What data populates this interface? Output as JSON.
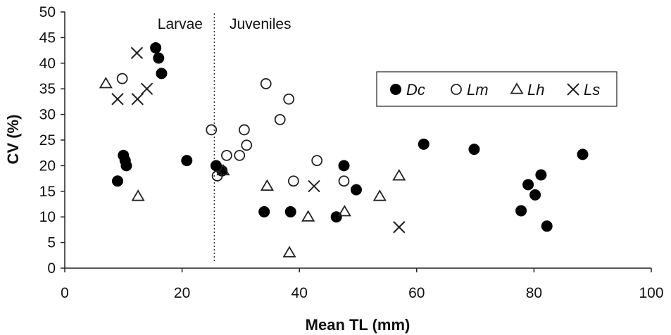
{
  "chart_data": {
    "type": "scatter",
    "title": "",
    "xlabel": "Mean TL (mm)",
    "ylabel": "CV (%)",
    "xlim": [
      0,
      100
    ],
    "ylim": [
      0,
      50
    ],
    "xticks": [
      0,
      20,
      40,
      60,
      80,
      100
    ],
    "yticks": [
      0,
      5,
      10,
      15,
      20,
      25,
      30,
      35,
      40,
      45,
      50
    ],
    "grid": false,
    "legend_position": "top-right",
    "divider": {
      "x": 25.5,
      "left_label": "Larvae",
      "right_label": "Juveniles"
    },
    "series": [
      {
        "name": "Dc",
        "marker": "filled-circle",
        "points": [
          [
            9,
            17
          ],
          [
            10,
            22
          ],
          [
            10.5,
            20
          ],
          [
            10.3,
            21
          ],
          [
            15.5,
            43
          ],
          [
            16,
            41
          ],
          [
            16.5,
            38
          ],
          [
            20.8,
            21
          ],
          [
            25.8,
            20
          ],
          [
            26.8,
            19
          ],
          [
            34,
            11
          ],
          [
            38.5,
            11
          ],
          [
            46.3,
            10
          ],
          [
            47.6,
            20
          ],
          [
            49.7,
            15.3
          ],
          [
            61.2,
            24.2
          ],
          [
            69.8,
            23.2
          ],
          [
            77.8,
            11.2
          ],
          [
            79,
            16.3
          ],
          [
            80.2,
            14.3
          ],
          [
            81.2,
            18.2
          ],
          [
            82.2,
            8.2
          ],
          [
            88.3,
            22.2
          ]
        ]
      },
      {
        "name": "Lm",
        "marker": "open-circle",
        "points": [
          [
            9.8,
            37
          ],
          [
            25,
            27
          ],
          [
            26,
            18
          ],
          [
            27.6,
            22
          ],
          [
            29.8,
            22
          ],
          [
            30.6,
            27
          ],
          [
            31,
            24
          ],
          [
            34.3,
            36
          ],
          [
            36.7,
            29
          ],
          [
            38.2,
            33
          ],
          [
            39,
            17
          ],
          [
            43,
            21
          ],
          [
            47.6,
            17
          ]
        ]
      },
      {
        "name": "Lh",
        "marker": "open-triangle",
        "points": [
          [
            7,
            36
          ],
          [
            12.5,
            14
          ],
          [
            27,
            19
          ],
          [
            34.5,
            16
          ],
          [
            38.3,
            3
          ],
          [
            41.5,
            10
          ],
          [
            47.7,
            11
          ],
          [
            53.7,
            14
          ],
          [
            57,
            18
          ]
        ]
      },
      {
        "name": "Ls",
        "marker": "cross",
        "points": [
          [
            9,
            33
          ],
          [
            12.3,
            42
          ],
          [
            12.4,
            33
          ],
          [
            14,
            35
          ],
          [
            42.5,
            16
          ],
          [
            57,
            8
          ]
        ]
      }
    ]
  }
}
